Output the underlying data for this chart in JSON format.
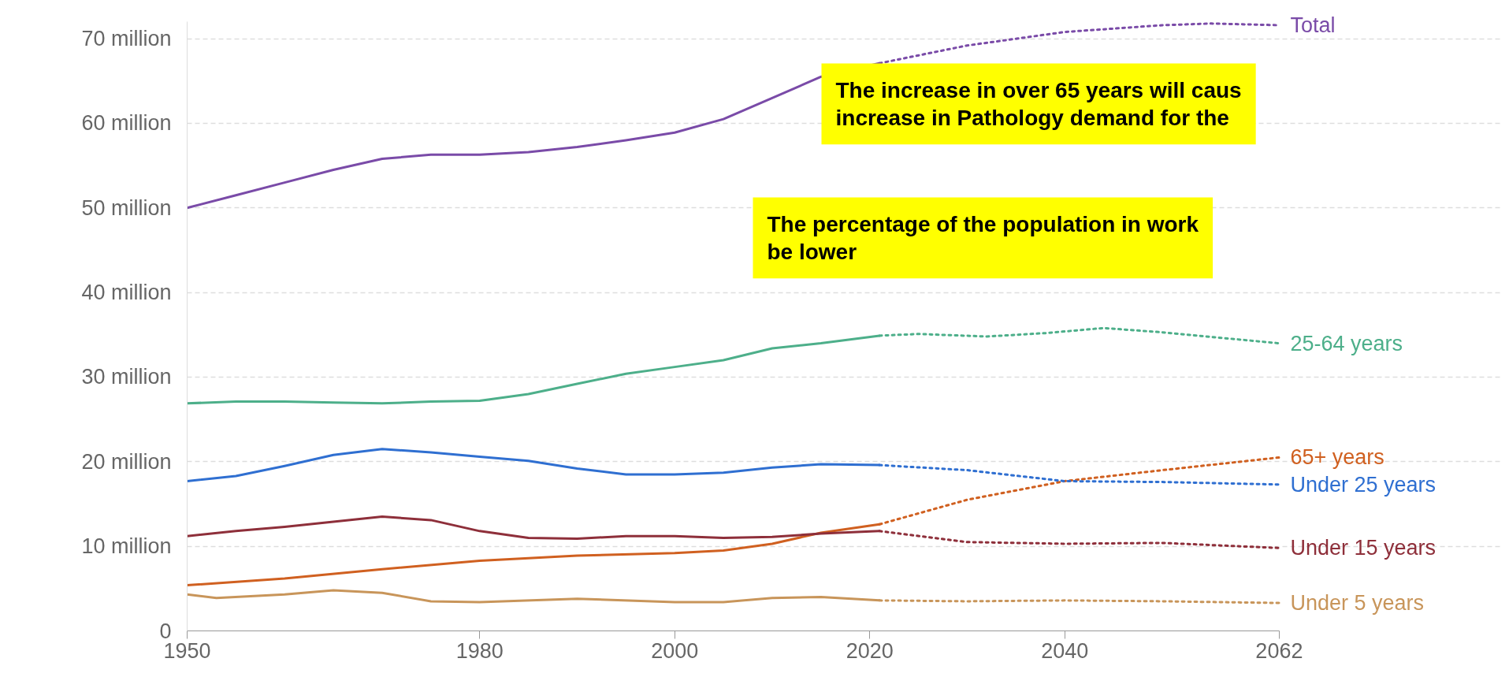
{
  "chart_data": {
    "type": "line",
    "xlim": [
      1950,
      2062
    ],
    "xticks": [
      1950,
      1980,
      2000,
      2020,
      2040,
      2062
    ],
    "ylim": [
      0,
      72
    ],
    "yticks": [
      0,
      {
        "value": 10,
        "label": "10 million"
      },
      {
        "value": 20,
        "label": "20 million"
      },
      {
        "value": 30,
        "label": "30 million"
      },
      {
        "value": 40,
        "label": "40 million"
      },
      {
        "value": 50,
        "label": "50 million"
      },
      {
        "value": 60,
        "label": "60 million"
      },
      {
        "value": 70,
        "label": "70 million"
      }
    ],
    "grid": "y",
    "marker": "none",
    "annotations": [
      "The increase in over 65 years will caus\nincrease in Pathology demand for the",
      "The percentage of the population in work\nbe lower"
    ],
    "series": [
      {
        "color": "#7a4ba8",
        "line_style": "solid",
        "x": [
          1950,
          1955,
          1960,
          1965,
          1970,
          1975,
          1980,
          1985,
          1990,
          1995,
          2000,
          2005,
          2010,
          2015,
          2021
        ],
        "values": [
          50,
          51.5,
          53,
          54.5,
          55.8,
          56.3,
          56.3,
          56.6,
          57.2,
          58,
          58.9,
          60.5,
          63,
          65.5,
          67.1
        ]
      },
      {
        "name": "Total",
        "color": "#7a4ba8",
        "line_style": "dotted",
        "x": [
          2021,
          2030,
          2040,
          2050,
          2055,
          2062
        ],
        "values": [
          67.1,
          69.2,
          70.8,
          71.6,
          71.8,
          71.6
        ]
      },
      {
        "color": "#4daf8a",
        "line_style": "solid",
        "x": [
          1950,
          1955,
          1960,
          1965,
          1970,
          1975,
          1980,
          1985,
          1990,
          1995,
          2000,
          2005,
          2010,
          2015,
          2021
        ],
        "values": [
          26.9,
          27.1,
          27.1,
          27.0,
          26.9,
          27.1,
          27.2,
          28,
          29.2,
          30.4,
          31.2,
          32,
          33.4,
          34,
          34.9
        ]
      },
      {
        "name": "25-64 years",
        "color": "#4daf8a",
        "line_style": "dotted",
        "x": [
          2021,
          2025,
          2032,
          2038,
          2044,
          2050,
          2062
        ],
        "values": [
          34.9,
          35.1,
          34.8,
          35.2,
          35.8,
          35.3,
          34.0
        ]
      },
      {
        "color": "#d06020",
        "line_style": "solid",
        "x": [
          1950,
          1960,
          1970,
          1980,
          1985,
          1990,
          2000,
          2005,
          2010,
          2015,
          2021
        ],
        "values": [
          5.4,
          6.2,
          7.3,
          8.3,
          8.6,
          8.9,
          9.2,
          9.5,
          10.3,
          11.6,
          12.6
        ]
      },
      {
        "name": "65+ years",
        "color": "#d06020",
        "line_style": "dotted",
        "x": [
          2021,
          2030,
          2040,
          2050,
          2062
        ],
        "values": [
          12.6,
          15.5,
          17.7,
          19.0,
          20.5
        ]
      },
      {
        "color": "#2f6fd1",
        "line_style": "solid",
        "x": [
          1950,
          1955,
          1960,
          1965,
          1970,
          1975,
          1980,
          1985,
          1990,
          1995,
          2000,
          2005,
          2010,
          2015,
          2021
        ],
        "values": [
          17.7,
          18.3,
          19.5,
          20.8,
          21.5,
          21.1,
          20.6,
          20.1,
          19.2,
          18.5,
          18.5,
          18.7,
          19.3,
          19.7,
          19.6
        ]
      },
      {
        "name": "Under 25 years",
        "color": "#2f6fd1",
        "line_style": "dotted",
        "x": [
          2021,
          2030,
          2040,
          2050,
          2062
        ],
        "values": [
          19.6,
          19.0,
          17.7,
          17.6,
          17.3
        ]
      },
      {
        "color": "#8e2f3a",
        "line_style": "solid",
        "x": [
          1950,
          1955,
          1960,
          1965,
          1970,
          1975,
          1980,
          1985,
          1990,
          1995,
          2000,
          2005,
          2010,
          2015,
          2021
        ],
        "values": [
          11.2,
          11.8,
          12.3,
          12.9,
          13.5,
          13.1,
          11.8,
          11,
          10.9,
          11.2,
          11.2,
          11.0,
          11.1,
          11.5,
          11.8
        ]
      },
      {
        "name": "Under 15 years",
        "color": "#8e2f3a",
        "line_style": "dotted",
        "x": [
          2021,
          2030,
          2040,
          2050,
          2062
        ],
        "values": [
          11.8,
          10.5,
          10.3,
          10.4,
          9.8
        ]
      },
      {
        "color": "#c8955a",
        "line_style": "solid",
        "x": [
          1950,
          1953,
          1960,
          1965,
          1970,
          1975,
          1980,
          1990,
          2000,
          2005,
          2010,
          2015,
          2021
        ],
        "values": [
          4.3,
          3.9,
          4.3,
          4.8,
          4.5,
          3.5,
          3.4,
          3.8,
          3.4,
          3.4,
          3.9,
          4.0,
          3.6
        ]
      },
      {
        "name": "Under 5 years",
        "color": "#c8955a",
        "line_style": "dotted",
        "x": [
          2021,
          2030,
          2040,
          2050,
          2062
        ],
        "values": [
          3.6,
          3.5,
          3.6,
          3.5,
          3.3
        ]
      }
    ]
  }
}
